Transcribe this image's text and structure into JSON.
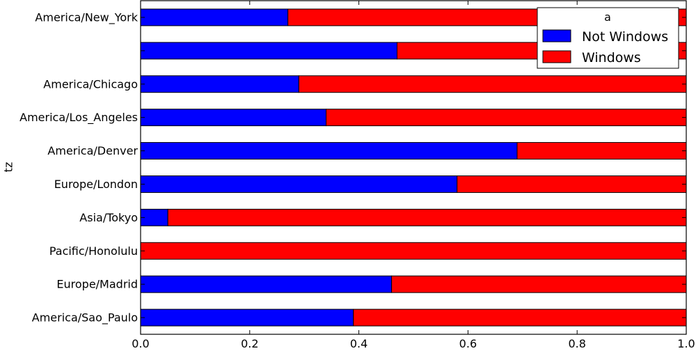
{
  "chart_data": {
    "type": "bar",
    "orientation": "horizontal",
    "stacked": true,
    "ylabel": "tz",
    "xlabel": "",
    "xlim": [
      0.0,
      1.0
    ],
    "xticks": [
      "0.0",
      "0.2",
      "0.4",
      "0.6",
      "0.8",
      "1.0"
    ],
    "categories": [
      "America/New_York",
      "",
      "America/Chicago",
      "America/Los_Angeles",
      "America/Denver",
      "Europe/London",
      "Asia/Tokyo",
      "Pacific/Honolulu",
      "Europe/Madrid",
      "America/Sao_Paulo"
    ],
    "series": [
      {
        "name": "Not Windows",
        "color": "#0000ff",
        "values": [
          0.27,
          0.47,
          0.29,
          0.34,
          0.69,
          0.58,
          0.05,
          0.0,
          0.46,
          0.39
        ]
      },
      {
        "name": "Windows",
        "color": "#ff0000",
        "values": [
          0.73,
          0.53,
          0.71,
          0.66,
          0.31,
          0.42,
          0.95,
          1.0,
          0.54,
          0.61
        ]
      }
    ],
    "legend": {
      "title": "a",
      "position": "top-right"
    },
    "grid": false
  }
}
